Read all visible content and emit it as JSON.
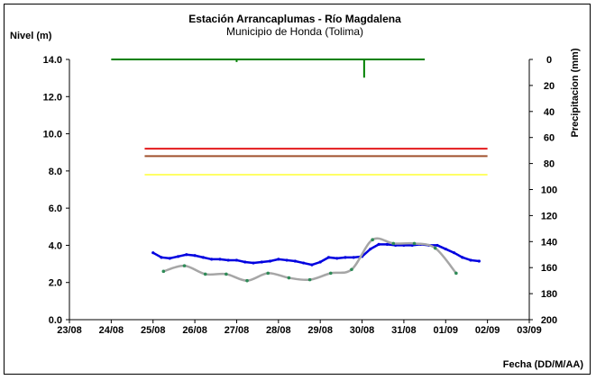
{
  "chart_data": {
    "type": "line",
    "title": "Estación Arrancaplumas - Río Magdalena",
    "subtitle": "Municipio de Honda (Tolima)",
    "ylabel": "Nivel (m)",
    "y2label": "Precipitacion (mm)",
    "xlabel": "Fecha (DD/M/AA)",
    "x_tick_labels": [
      "23/08",
      "24/08",
      "25/08",
      "26/08",
      "27/08",
      "28/08",
      "29/08",
      "30/08",
      "31/08",
      "01/09",
      "02/09",
      "03/09"
    ],
    "y_tick_labels": [
      "0.0",
      "2.0",
      "4.0",
      "6.0",
      "8.0",
      "10.0",
      "12.0",
      "14.0"
    ],
    "y2_tick_labels": [
      "0",
      "20",
      "40",
      "60",
      "80",
      "100",
      "120",
      "140",
      "160",
      "180",
      "200"
    ],
    "xlim": [
      0,
      11
    ],
    "ylim": [
      0,
      14
    ],
    "y2lim": [
      0,
      200
    ],
    "y2_inverted": true,
    "grid": false,
    "threshold_lines": [
      {
        "y": 9.2,
        "x_start": 1.8,
        "x_end": 10.0,
        "color": "#e31a1c"
      },
      {
        "y": 8.8,
        "x_start": 1.8,
        "x_end": 10.0,
        "color": "#a0522d"
      },
      {
        "y": 7.8,
        "x_start": 1.8,
        "x_end": 10.0,
        "color": "#ffff66"
      }
    ],
    "series": [
      {
        "color": "#0000e0",
        "style": "line-points",
        "points": [
          [
            2.0,
            3.6
          ],
          [
            2.2,
            3.35
          ],
          [
            2.4,
            3.3
          ],
          [
            2.6,
            3.4
          ],
          [
            2.8,
            3.5
          ],
          [
            3.0,
            3.45
          ],
          [
            3.2,
            3.35
          ],
          [
            3.4,
            3.25
          ],
          [
            3.6,
            3.25
          ],
          [
            3.8,
            3.2
          ],
          [
            4.0,
            3.2
          ],
          [
            4.2,
            3.1
          ],
          [
            4.4,
            3.05
          ],
          [
            4.6,
            3.1
          ],
          [
            4.8,
            3.15
          ],
          [
            5.0,
            3.25
          ],
          [
            5.2,
            3.2
          ],
          [
            5.4,
            3.15
          ],
          [
            5.6,
            3.05
          ],
          [
            5.8,
            2.95
          ],
          [
            6.0,
            3.1
          ],
          [
            6.2,
            3.35
          ],
          [
            6.4,
            3.3
          ],
          [
            6.6,
            3.35
          ],
          [
            6.8,
            3.35
          ],
          [
            7.0,
            3.4
          ],
          [
            7.2,
            3.8
          ],
          [
            7.4,
            4.05
          ],
          [
            7.6,
            4.05
          ],
          [
            7.8,
            4.0
          ],
          [
            8.0,
            4.0
          ],
          [
            8.2,
            4.0
          ],
          [
            8.4,
            4.05
          ],
          [
            8.6,
            4.0
          ],
          [
            8.8,
            4.0
          ],
          [
            9.0,
            3.8
          ],
          [
            9.2,
            3.6
          ],
          [
            9.4,
            3.35
          ],
          [
            9.6,
            3.2
          ],
          [
            9.8,
            3.15
          ]
        ]
      },
      {
        "color": "#a6a6a6",
        "style": "smooth",
        "points": [
          [
            2.25,
            2.6
          ],
          [
            2.75,
            2.9
          ],
          [
            3.25,
            2.45
          ],
          [
            3.75,
            2.45
          ],
          [
            4.25,
            2.1
          ],
          [
            4.75,
            2.5
          ],
          [
            5.25,
            2.25
          ],
          [
            5.75,
            2.15
          ],
          [
            6.25,
            2.5
          ],
          [
            6.75,
            2.7
          ],
          [
            7.25,
            4.3
          ],
          [
            7.75,
            4.1
          ],
          [
            8.25,
            4.1
          ],
          [
            8.75,
            3.85
          ],
          [
            9.25,
            2.5
          ]
        ]
      }
    ],
    "precipitation": {
      "color": "#008000",
      "baseline_mm": 0,
      "x_start": 1.0,
      "x_end": 8.5,
      "spikes": [
        {
          "x": 4.0,
          "mm": 2
        },
        {
          "x": 7.05,
          "mm": 14
        }
      ]
    }
  }
}
